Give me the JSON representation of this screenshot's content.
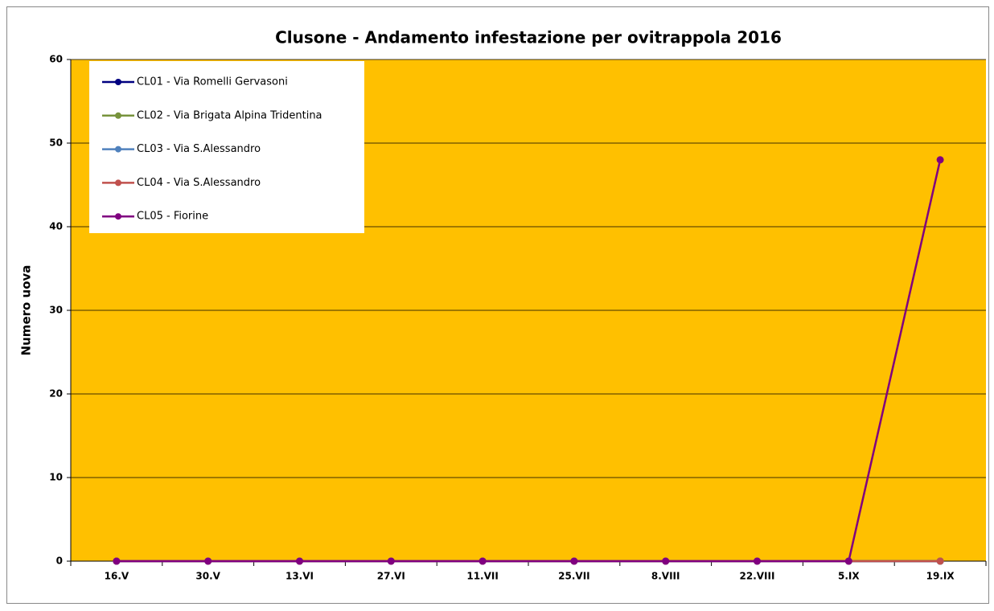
{
  "chart_data": {
    "type": "line",
    "title": "Clusone - Andamento infestazione per ovitrappola 2016",
    "y_label": "Numero uova",
    "categories": [
      "16.V",
      "30.V",
      "13.VI",
      "27.VI",
      "11.VII",
      "25.VII",
      "8.VIII",
      "22.VIII",
      "5.IX",
      "19.IX"
    ],
    "series": [
      {
        "name": "CL01 - Via Romelli Gervasoni",
        "color": "#000080",
        "values": [
          0,
          0,
          0,
          0,
          0,
          0,
          0,
          0,
          0,
          0
        ]
      },
      {
        "name": "CL02 - Via Brigata Alpina Tridentina",
        "color": "#77933C",
        "values": [
          0,
          0,
          0,
          0,
          0,
          0,
          0,
          0,
          0,
          0
        ]
      },
      {
        "name": "CL03 - Via S.Alessandro",
        "color": "#4F81BD",
        "values": [
          0,
          0,
          0,
          0,
          0,
          0,
          0,
          0,
          0,
          0
        ]
      },
      {
        "name": "CL04 - Via S.Alessandro",
        "color": "#C0504D",
        "values": [
          0,
          0,
          0,
          0,
          0,
          0,
          0,
          0,
          0,
          0
        ]
      },
      {
        "name": "CL05 - Fiorine",
        "color": "#800080",
        "values": [
          0,
          0,
          0,
          0,
          0,
          0,
          0,
          0,
          0,
          48
        ]
      }
    ],
    "ylim": [
      0,
      60
    ],
    "yticks": [
      0,
      10,
      20,
      30,
      40,
      50,
      60
    ],
    "grid": true,
    "plot_background": "#FFC000",
    "legend": "upper left"
  }
}
